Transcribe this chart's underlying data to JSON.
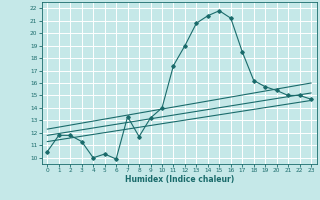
{
  "xlabel": "Humidex (Indice chaleur)",
  "bg_color": "#c5e8e8",
  "grid_color": "#ffffff",
  "line_color": "#1a6b6b",
  "xlim": [
    -0.5,
    23.5
  ],
  "ylim": [
    9.5,
    22.5
  ],
  "xticks": [
    0,
    1,
    2,
    3,
    4,
    5,
    6,
    7,
    8,
    9,
    10,
    11,
    12,
    13,
    14,
    15,
    16,
    17,
    18,
    19,
    20,
    21,
    22,
    23
  ],
  "yticks": [
    10,
    11,
    12,
    13,
    14,
    15,
    16,
    17,
    18,
    19,
    20,
    21,
    22
  ],
  "curve1_x": [
    0,
    1,
    2,
    3,
    4,
    5,
    6,
    7,
    8,
    9,
    10,
    11,
    12,
    13,
    14,
    15,
    16,
    17,
    18,
    19,
    20,
    21,
    22,
    23
  ],
  "curve1_y": [
    10.5,
    11.8,
    11.8,
    11.3,
    10.0,
    10.3,
    9.9,
    13.3,
    11.7,
    13.2,
    14.0,
    17.4,
    19.0,
    20.8,
    21.4,
    21.8,
    21.2,
    18.5,
    16.2,
    15.7,
    15.4,
    15.0,
    15.0,
    14.7
  ],
  "line1_x": [
    0,
    23
  ],
  "line1_y": [
    11.3,
    14.6
  ],
  "line2_x": [
    0,
    23
  ],
  "line2_y": [
    11.8,
    15.2
  ],
  "line3_x": [
    0,
    23
  ],
  "line3_y": [
    12.3,
    16.0
  ]
}
